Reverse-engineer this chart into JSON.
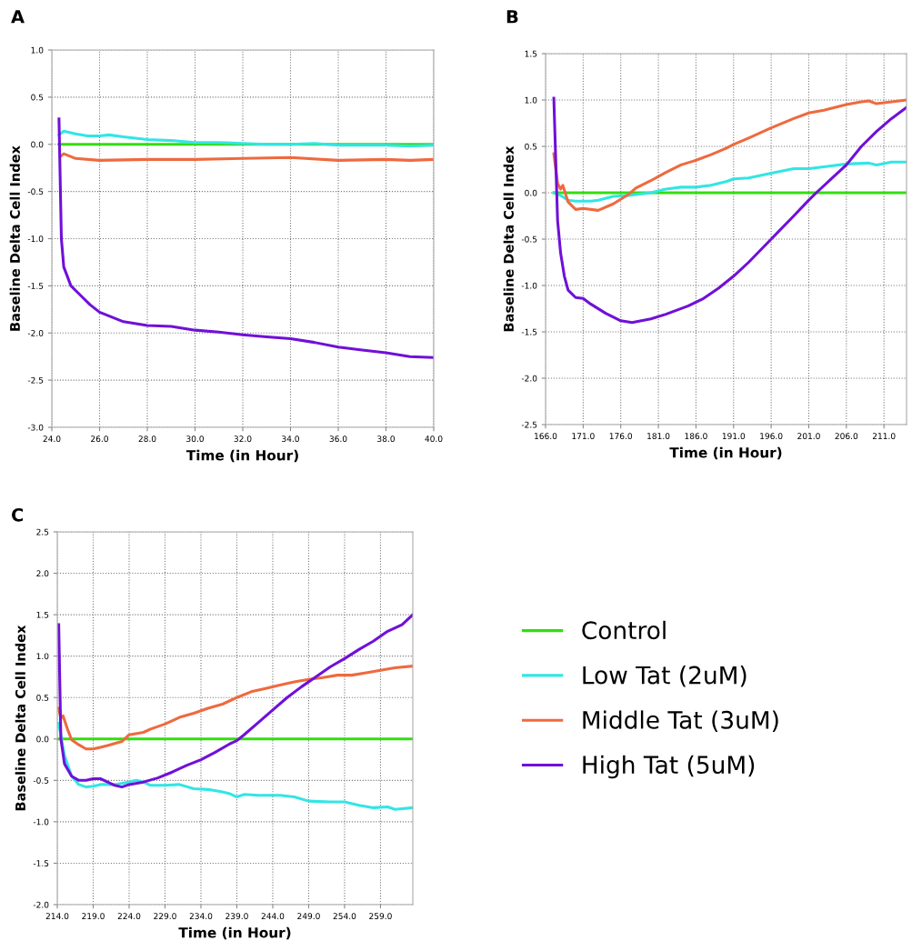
{
  "chart_data": [
    {
      "type": "line",
      "title": "A",
      "xlabel": "Time (in Hour)",
      "ylabel": "Baseline Delta Cell Index",
      "xlim": [
        24.0,
        40.0
      ],
      "xticks": [
        {
          "value": 24,
          "label": "24.0"
        },
        {
          "value": 26,
          "label": "26.0"
        },
        {
          "value": 28,
          "label": "28.0"
        },
        {
          "value": 30,
          "label": "30.0"
        },
        {
          "value": 32,
          "label": "32.0"
        },
        {
          "value": 34,
          "label": "34.0"
        },
        {
          "value": 36,
          "label": "36.0"
        },
        {
          "value": 38,
          "label": "38.0"
        },
        {
          "value": 40,
          "label": "40.0"
        }
      ],
      "ylim": [
        -3.0,
        1.0
      ],
      "yticks": [
        {
          "value": -3,
          "label": "-3.0"
        },
        {
          "value": -2.5,
          "label": "-2.5"
        },
        {
          "value": -2,
          "label": "-2.0"
        },
        {
          "value": -1.5,
          "label": "-1.5"
        },
        {
          "value": -1,
          "label": "-1.0"
        },
        {
          "value": -0.5,
          "label": "-0.5"
        },
        {
          "value": 0,
          "label": "0.0"
        },
        {
          "value": 0.5,
          "label": "0.5"
        },
        {
          "value": 1,
          "label": "1.0"
        }
      ],
      "grid": true,
      "legend": false,
      "series": [
        {
          "color": "#33dd11",
          "x": [
            24.3,
            40
          ],
          "values": [
            0,
            0
          ]
        },
        {
          "color": "#33e5e5",
          "x": [
            24.3,
            24.5,
            25.0,
            25.5,
            26.0,
            26.4,
            27,
            28,
            29,
            30,
            31,
            32,
            33,
            34,
            35,
            36,
            37,
            38,
            39,
            40
          ],
          "values": [
            0.1,
            0.14,
            0.11,
            0.09,
            0.09,
            0.1,
            0.08,
            0.05,
            0.04,
            0.02,
            0.02,
            0.01,
            0.0,
            0.0,
            0.01,
            -0.01,
            -0.01,
            -0.01,
            -0.02,
            -0.01
          ]
        },
        {
          "color": "#ee6a3e",
          "x": [
            24.35,
            24.5,
            25,
            26,
            28,
            30,
            32,
            34,
            36,
            38,
            39,
            40
          ],
          "values": [
            -0.13,
            -0.1,
            -0.15,
            -0.17,
            -0.16,
            -0.16,
            -0.15,
            -0.14,
            -0.17,
            -0.16,
            -0.17,
            -0.16
          ]
        },
        {
          "color": "#7010d8",
          "x": [
            24.3,
            24.4,
            24.5,
            24.8,
            25.2,
            25.6,
            26,
            26.5,
            27,
            28,
            29,
            30,
            31,
            32,
            33,
            34,
            35,
            36,
            37,
            38,
            39,
            40
          ],
          "values": [
            0.27,
            -1.0,
            -1.3,
            -1.5,
            -1.6,
            -1.7,
            -1.78,
            -1.83,
            -1.88,
            -1.92,
            -1.93,
            -1.97,
            -1.99,
            -2.02,
            -2.04,
            -2.06,
            -2.1,
            -2.15,
            -2.18,
            -2.21,
            -2.25,
            -2.26
          ]
        }
      ]
    },
    {
      "type": "line",
      "title": "B",
      "xlabel": "Time (in Hour)",
      "ylabel": "Baseline Delta Cell Index",
      "xlim": [
        166.0,
        214.0
      ],
      "xticks": [
        {
          "value": 166,
          "label": "166.0"
        },
        {
          "value": 171,
          "label": "171.0"
        },
        {
          "value": 176,
          "label": "176.0"
        },
        {
          "value": 181,
          "label": "181.0"
        },
        {
          "value": 186,
          "label": "186.0"
        },
        {
          "value": 191,
          "label": "191.0"
        },
        {
          "value": 196,
          "label": "196.0"
        },
        {
          "value": 201,
          "label": "201.0"
        },
        {
          "value": 206,
          "label": "206.0"
        },
        {
          "value": 211,
          "label": "211.0"
        }
      ],
      "ylim": [
        -2.5,
        1.5
      ],
      "yticks": [
        {
          "value": -2.5,
          "label": "-2.5"
        },
        {
          "value": -2,
          "label": "-2.0"
        },
        {
          "value": -1.5,
          "label": "-1.5"
        },
        {
          "value": -1,
          "label": "-1.0"
        },
        {
          "value": -0.5,
          "label": "-0.5"
        },
        {
          "value": 0,
          "label": "0.0"
        },
        {
          "value": 0.5,
          "label": "0.5"
        },
        {
          "value": 1,
          "label": "1.0"
        },
        {
          "value": 1.5,
          "label": "1.5"
        }
      ],
      "grid": true,
      "legend": false,
      "series": [
        {
          "color": "#33dd11",
          "x": [
            167.1,
            214
          ],
          "values": [
            0,
            0
          ]
        },
        {
          "color": "#33e5e5",
          "x": [
            167.1,
            168,
            169,
            170,
            172,
            173,
            175,
            177,
            180,
            182,
            184,
            186,
            188,
            190,
            191,
            193,
            196,
            199,
            201,
            203,
            206,
            209,
            210,
            212,
            214
          ],
          "values": [
            0,
            -0.03,
            -0.08,
            -0.09,
            -0.09,
            -0.08,
            -0.04,
            -0.03,
            0.0,
            0.04,
            0.06,
            0.06,
            0.08,
            0.12,
            0.15,
            0.16,
            0.21,
            0.26,
            0.26,
            0.28,
            0.31,
            0.32,
            0.3,
            0.33,
            0.33
          ]
        },
        {
          "color": "#ee6a3e",
          "x": [
            167.1,
            167.6,
            168,
            168.3,
            169,
            170,
            171,
            173,
            175,
            177,
            178,
            180,
            182,
            184,
            186,
            188,
            190,
            191,
            193,
            196,
            199,
            201,
            203,
            206,
            208,
            209,
            210,
            212,
            214
          ],
          "values": [
            0.42,
            0.1,
            0.04,
            0.08,
            -0.1,
            -0.18,
            -0.17,
            -0.19,
            -0.12,
            -0.02,
            0.05,
            0.13,
            0.22,
            0.3,
            0.35,
            0.41,
            0.48,
            0.52,
            0.59,
            0.7,
            0.8,
            0.86,
            0.89,
            0.95,
            0.98,
            0.99,
            0.96,
            0.98,
            1.0
          ]
        },
        {
          "color": "#7010d8",
          "x": [
            167.1,
            167.6,
            168,
            168.5,
            169,
            170,
            171,
            172,
            174,
            176,
            177.5,
            180,
            182,
            185,
            187,
            189,
            191,
            193,
            196,
            199,
            201,
            202,
            204,
            206,
            208,
            210,
            212,
            214
          ],
          "values": [
            1.02,
            -0.3,
            -0.65,
            -0.9,
            -1.05,
            -1.13,
            -1.14,
            -1.2,
            -1.3,
            -1.38,
            -1.4,
            -1.36,
            -1.31,
            -1.22,
            -1.14,
            -1.03,
            -0.9,
            -0.75,
            -0.5,
            -0.25,
            -0.08,
            0.0,
            0.15,
            0.3,
            0.5,
            0.66,
            0.8,
            0.92
          ]
        }
      ]
    },
    {
      "type": "line",
      "title": "C",
      "xlabel": "Time (in Hour)",
      "ylabel": "Baseline Delta Cell Index",
      "xlim": [
        214.0,
        263.5
      ],
      "xticks": [
        {
          "value": 214,
          "label": "214.0"
        },
        {
          "value": 219,
          "label": "219.0"
        },
        {
          "value": 224,
          "label": "224.0"
        },
        {
          "value": 229,
          "label": "229.0"
        },
        {
          "value": 234,
          "label": "234.0"
        },
        {
          "value": 239,
          "label": "239.0"
        },
        {
          "value": 244,
          "label": "244.0"
        },
        {
          "value": 249,
          "label": "249.0"
        },
        {
          "value": 254,
          "label": "254.0"
        },
        {
          "value": 259,
          "label": "259.0"
        }
      ],
      "ylim": [
        -2.0,
        2.5
      ],
      "yticks": [
        {
          "value": -2,
          "label": "-2.0"
        },
        {
          "value": -1.5,
          "label": "-1.5"
        },
        {
          "value": -1,
          "label": "-1.0"
        },
        {
          "value": -0.5,
          "label": "-0.5"
        },
        {
          "value": 0,
          "label": "0.0"
        },
        {
          "value": 0.5,
          "label": "0.5"
        },
        {
          "value": 1,
          "label": "1.0"
        },
        {
          "value": 1.5,
          "label": "1.5"
        },
        {
          "value": 2,
          "label": "2.0"
        },
        {
          "value": 2.5,
          "label": "2.5"
        }
      ],
      "grid": true,
      "legend": "right",
      "series": [
        {
          "name": "Control",
          "color": "#33dd11",
          "x": [
            214.2,
            263.5
          ],
          "values": [
            0,
            0
          ]
        },
        {
          "name": "Low Tat (2uM)",
          "color": "#33e5e5",
          "x": [
            214.2,
            215,
            216,
            217,
            218,
            219,
            220,
            222,
            224,
            225,
            226,
            227,
            229,
            231,
            233,
            235,
            237,
            238,
            239,
            240,
            242,
            245,
            247,
            249,
            252,
            254,
            256,
            258,
            260,
            261,
            263.5
          ],
          "values": [
            0.19,
            -0.2,
            -0.45,
            -0.55,
            -0.58,
            -0.57,
            -0.55,
            -0.55,
            -0.52,
            -0.5,
            -0.52,
            -0.56,
            -0.56,
            -0.55,
            -0.6,
            -0.61,
            -0.64,
            -0.66,
            -0.7,
            -0.67,
            -0.68,
            -0.68,
            -0.7,
            -0.75,
            -0.76,
            -0.76,
            -0.8,
            -0.83,
            -0.82,
            -0.85,
            -0.83
          ]
        },
        {
          "name": "Middle Tat (3uM)",
          "color": "#ee6a3e",
          "x": [
            214.2,
            214.5,
            214.8,
            215.5,
            216,
            217,
            218,
            219,
            220,
            221,
            223,
            224,
            226,
            227,
            229,
            231,
            233,
            235,
            237,
            239,
            241,
            243,
            245,
            247,
            249,
            251,
            253,
            255,
            257,
            259,
            261,
            263.5
          ],
          "values": [
            0.37,
            0.25,
            0.28,
            0.1,
            -0.01,
            -0.07,
            -0.12,
            -0.12,
            -0.1,
            -0.08,
            -0.03,
            0.05,
            0.08,
            0.12,
            0.18,
            0.26,
            0.31,
            0.37,
            0.42,
            0.5,
            0.57,
            0.61,
            0.65,
            0.69,
            0.72,
            0.74,
            0.77,
            0.77,
            0.8,
            0.83,
            0.86,
            0.88
          ]
        },
        {
          "name": "High Tat (5uM)",
          "color": "#7010d8",
          "x": [
            214.2,
            214.5,
            215,
            216,
            217,
            218,
            219,
            220,
            221,
            222,
            223,
            224,
            226,
            228,
            230,
            232,
            234,
            236,
            238,
            239,
            240,
            242,
            244,
            246,
            248,
            250,
            252,
            254,
            256,
            258,
            260,
            262,
            263.5
          ],
          "values": [
            1.38,
            0.0,
            -0.3,
            -0.45,
            -0.5,
            -0.5,
            -0.48,
            -0.48,
            -0.52,
            -0.56,
            -0.58,
            -0.55,
            -0.52,
            -0.47,
            -0.4,
            -0.32,
            -0.25,
            -0.16,
            -0.06,
            -0.02,
            0.05,
            0.2,
            0.35,
            0.5,
            0.63,
            0.75,
            0.87,
            0.97,
            1.08,
            1.18,
            1.3,
            1.38,
            1.5
          ]
        }
      ]
    }
  ]
}
